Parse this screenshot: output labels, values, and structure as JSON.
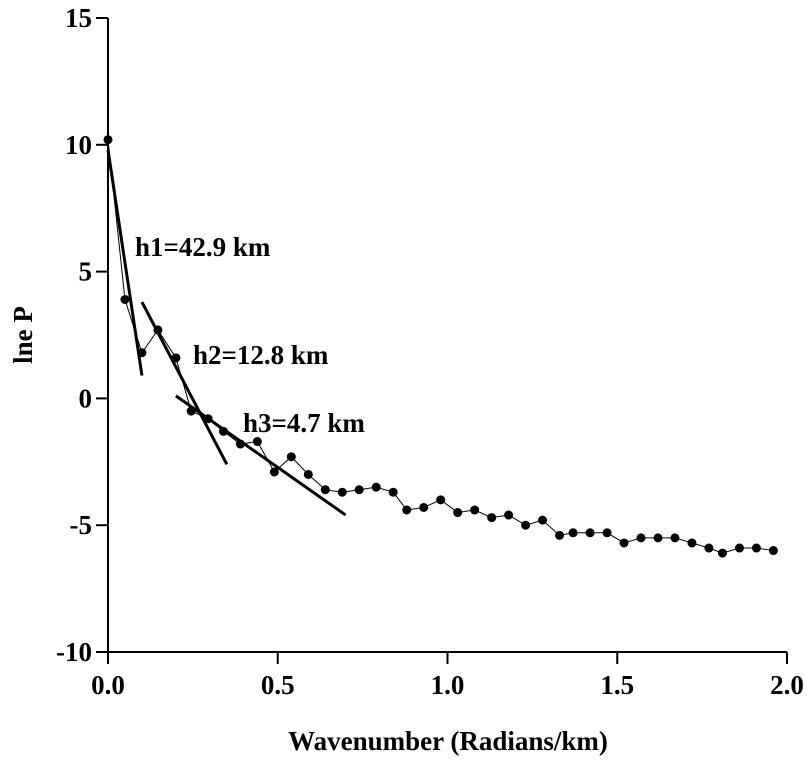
{
  "chart_data": {
    "type": "line",
    "xlabel": "Wavenumber (Radians/km)",
    "ylabel": "lne P",
    "xlim": [
      0,
      2.0
    ],
    "ylim": [
      -10,
      15
    ],
    "xticks": [
      {
        "value": 0,
        "label": "0.0"
      },
      0.5,
      {
        "value": 1,
        "label": "1.0"
      },
      1.5,
      {
        "value": 2,
        "label": "2.0"
      }
    ],
    "yticks": [
      15,
      10,
      5,
      0,
      -5,
      -10
    ],
    "series": [
      {
        "color": "#000000",
        "x": [
          0,
          0.05,
          0.1,
          0.147,
          0.2,
          0.245,
          0.295,
          0.34,
          0.39,
          0.44,
          0.49,
          0.54,
          0.59,
          0.64,
          0.69,
          0.74,
          0.79,
          0.84,
          0.88,
          0.93,
          0.98,
          1.03,
          1.08,
          1.13,
          1.18,
          1.23,
          1.28,
          1.33,
          1.37,
          1.42,
          1.47,
          1.52,
          1.57,
          1.62,
          1.67,
          1.72,
          1.77,
          1.81,
          1.86,
          1.91,
          1.96
        ],
        "values": [
          10.2,
          3.9,
          1.8,
          2.7,
          1.6,
          -0.5,
          -0.8,
          -1.3,
          -1.8,
          -1.7,
          -2.9,
          -2.3,
          -3.0,
          -3.6,
          -3.7,
          -3.6,
          -3.5,
          -3.7,
          -4.4,
          -4.3,
          -4.0,
          -4.5,
          -4.4,
          -4.7,
          -4.6,
          -5.0,
          -4.8,
          -5.4,
          -5.3,
          -5.3,
          -5.3,
          -5.7,
          -5.5,
          -5.5,
          -5.5,
          -5.7,
          -5.9,
          -6.1,
          -5.9,
          -5.9,
          -6.0
        ]
      }
    ],
    "fits": [
      {
        "label": "h1=42.9 km",
        "x": [
          0,
          0.1
        ],
        "values": [
          9.8,
          0.9
        ]
      },
      {
        "label": "h2=12.8 km",
        "x": [
          0.1,
          0.35
        ],
        "values": [
          3.8,
          -2.6
        ]
      },
      {
        "label": "h3=4.7 km",
        "x": [
          0.2,
          0.7
        ],
        "values": [
          0.1,
          -4.6
        ]
      }
    ]
  }
}
